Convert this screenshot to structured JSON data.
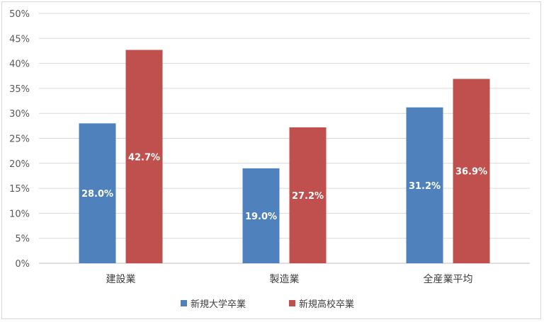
{
  "chart_data": {
    "type": "bar",
    "categories": [
      "建設業",
      "製造業",
      "全産業平均"
    ],
    "series": [
      {
        "name": "新規大学卒業",
        "values": [
          28.0,
          19.0,
          31.2
        ],
        "color": "#4F81BD"
      },
      {
        "name": "新規高校卒業",
        "values": [
          42.7,
          27.2,
          36.9
        ],
        "color": "#C0504D"
      }
    ],
    "data_labels": [
      [
        "28.0%",
        "19.0%",
        "31.2%"
      ],
      [
        "42.7%",
        "27.2%",
        "36.9%"
      ]
    ],
    "y_ticks": [
      "0%",
      "5%",
      "10%",
      "15%",
      "20%",
      "25%",
      "30%",
      "35%",
      "40%",
      "45%",
      "50%"
    ],
    "ylim": [
      0,
      50
    ],
    "grid": true,
    "legend_position": "bottom",
    "title": "",
    "xlabel": "",
    "ylabel": ""
  }
}
